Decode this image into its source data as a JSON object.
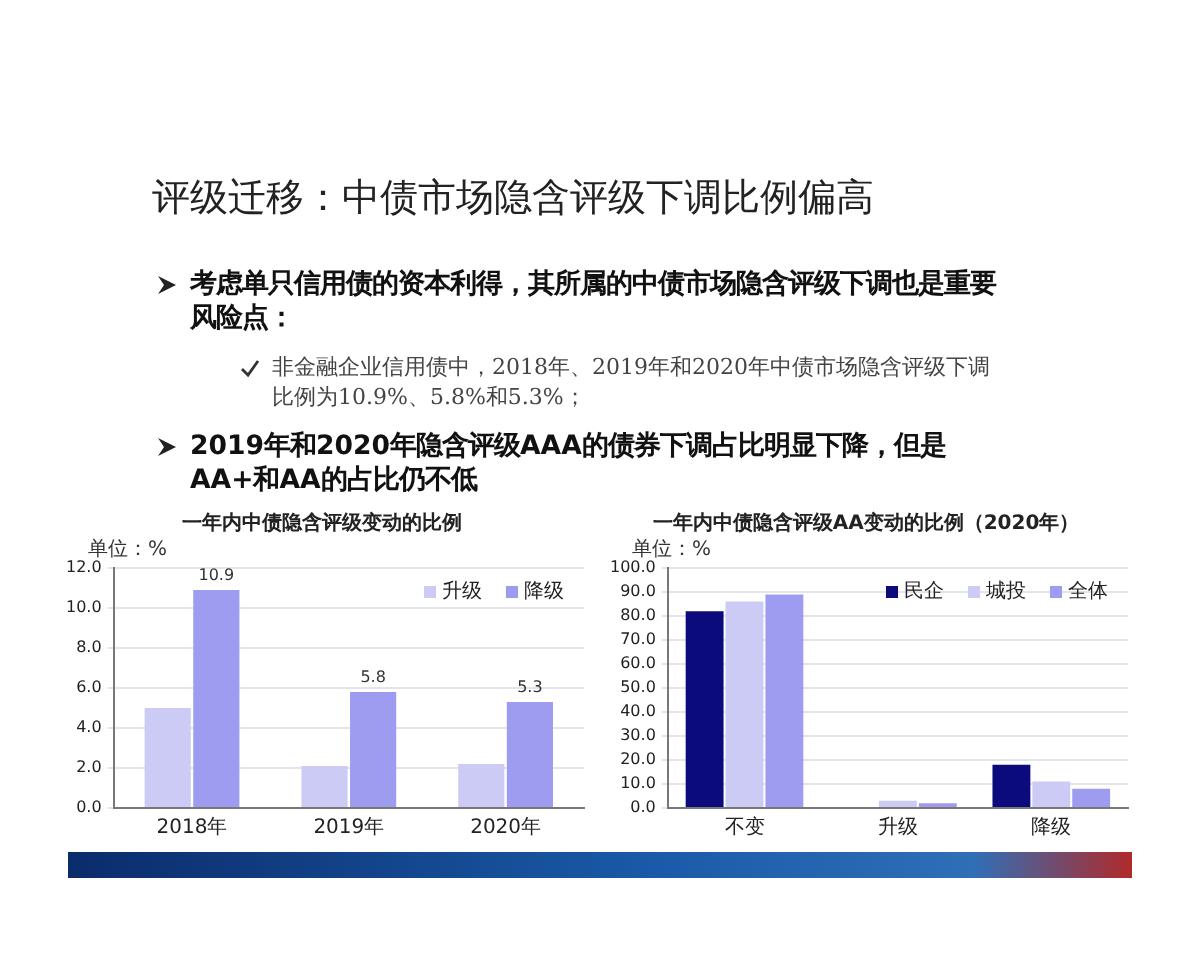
{
  "chart_data": [
    {
      "type": "other",
      "title": "评级迁移：中债市场隐含评级下调比例偏高",
      "annotations": [
        "考虑单只信用债的资本利得，其所属的中债市场隐含评级下调也是重要风险点：",
        "非金融企业信用债中，2018年、2019年和2020年中债市场隐含评级下调比例为10.9%、5.8%和5.3%；",
        "2019年和2020年隐含评级AAA的债券下调占比明显下降，但是AA+和AA的占比仍不低"
      ]
    },
    {
      "type": "bar",
      "title": "一年内中债隐含评级变动的比例",
      "ylabel": "单位：%",
      "categories": [
        "2018年",
        "2019年",
        "2020年"
      ],
      "series": [
        {
          "name": "升级",
          "color": "#cbcbf5",
          "values": [
            5.0,
            2.1,
            2.2
          ]
        },
        {
          "name": "降级",
          "color": "#9d9cf0",
          "values": [
            10.9,
            5.8,
            5.3
          ],
          "value_labels": [
            "10.9",
            "5.8",
            "5.3"
          ]
        }
      ],
      "ylim": [
        0,
        12
      ],
      "yticks": [
        {
          "value": 0,
          "label": "0.0"
        },
        {
          "value": 2,
          "label": "2.0"
        },
        {
          "value": 4,
          "label": "4.0"
        },
        {
          "value": 6,
          "label": "6.0"
        },
        {
          "value": 8,
          "label": "8.0"
        },
        {
          "value": 10,
          "label": "10.0"
        },
        {
          "value": 12,
          "label": "12.0"
        }
      ],
      "grid": "y",
      "legend": "top right"
    },
    {
      "type": "bar",
      "title": "一年内中债隐含评级AA变动的比例（2020年）",
      "ylabel": "单位：%",
      "categories": [
        "不变",
        "升级",
        "降级"
      ],
      "series": [
        {
          "name": "民企",
          "color": "#0b0b7e",
          "values": [
            82,
            0,
            18
          ]
        },
        {
          "name": "城投",
          "color": "#cbcbf5",
          "values": [
            86,
            3,
            11
          ]
        },
        {
          "name": "全体",
          "color": "#9d9cf0",
          "values": [
            89,
            2,
            8
          ]
        }
      ],
      "ylim": [
        0,
        100
      ],
      "yticks": [
        {
          "value": 0,
          "label": "0.0"
        },
        {
          "value": 10,
          "label": "10.0"
        },
        {
          "value": 20,
          "label": "20.0"
        },
        {
          "value": 30,
          "label": "30.0"
        },
        {
          "value": 40,
          "label": "40.0"
        },
        {
          "value": 50,
          "label": "50.0"
        },
        {
          "value": 60,
          "label": "60.0"
        },
        {
          "value": 70,
          "label": "70.0"
        },
        {
          "value": 80,
          "label": "80.0"
        },
        {
          "value": 90,
          "label": "90.0"
        },
        {
          "value": 100,
          "label": "100.0"
        }
      ],
      "grid": "y",
      "legend": "top right"
    }
  ]
}
